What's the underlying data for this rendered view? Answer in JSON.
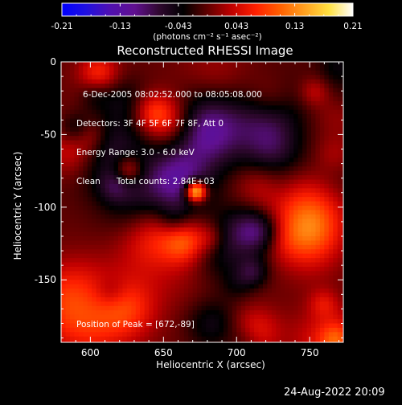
{
  "chart_data": {
    "type": "heatmap",
    "title": "Reconstructed RHESSI Image",
    "xlabel": "Heliocentric X (arcsec)",
    "ylabel": "Heliocentric Y (arcsec)",
    "xlim": [
      580,
      773
    ],
    "ylim": [
      -193,
      0
    ],
    "xticks": [
      600,
      650,
      700,
      750
    ],
    "yticks": [
      0,
      -50,
      -100,
      -150
    ],
    "colorbar": {
      "ticks": [
        "-0.21",
        "-0.13",
        "-0.043",
        "0.043",
        "0.13",
        "0.21"
      ],
      "range": [
        -0.21,
        0.21
      ],
      "units": "(photons cm⁻² s⁻¹ asec⁻²)",
      "stops": [
        "#0000ff",
        "#2010e0",
        "#5010b0",
        "#601090",
        "#300830",
        "#000000",
        "#600000",
        "#c00000",
        "#ff2000",
        "#ff6000",
        "#ffa020",
        "#ffe040",
        "#ffffff"
      ]
    },
    "info_lines": [
      "6-Dec-2005 08:02:52.000 to 08:05:08.000",
      "Detectors: 3F 4F 5F 6F 7F 8F, Att 0",
      "Energy Range: 3.0 - 6.0 keV",
      "Clean      Total counts: 2.84E+03"
    ],
    "peak_label": "Position of Peak = [672,-89]",
    "peak": {
      "x": 672,
      "y": -89,
      "value": 0.21
    }
  },
  "footer": {
    "timestamp": "24-Aug-2022 20:09"
  }
}
